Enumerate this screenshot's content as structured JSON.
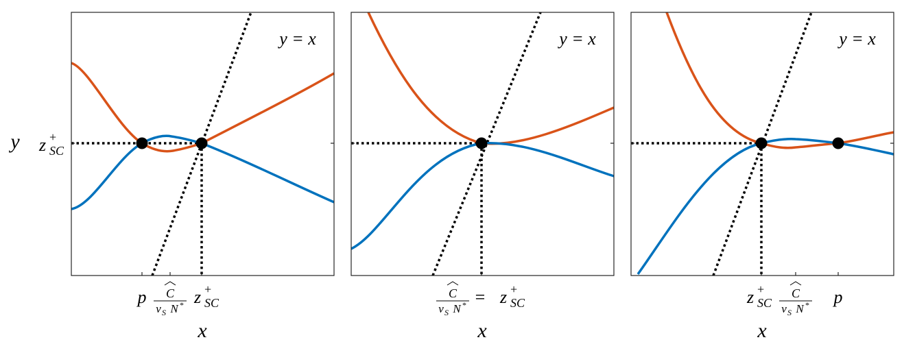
{
  "y_axis_label": "y",
  "y_tick_label": {
    "base": "z",
    "sup": "+",
    "sub": "SC"
  },
  "panels": [
    {
      "annotation": "y = x",
      "x_axis_label": "x",
      "tick_labels": [
        {
          "text": "p"
        },
        {
          "numerator": "C",
          "denominator": [
            "ν",
            "S",
            "N",
            "*"
          ]
        },
        {
          "base": "z",
          "sup": "+",
          "sub": "SC"
        }
      ]
    },
    {
      "annotation": "y = x",
      "x_axis_label": "x",
      "tick_labels": [
        {
          "numerator": "C",
          "denominator": [
            "ν",
            "S",
            "N",
            "*"
          ]
        },
        {
          "text": "="
        },
        {
          "base": "z",
          "sup": "+",
          "sub": "SC"
        }
      ]
    },
    {
      "annotation": "y = x",
      "x_axis_label": "x",
      "tick_labels": [
        {
          "base": "z",
          "sup": "+",
          "sub": "SC"
        },
        {
          "numerator": "C",
          "denominator": [
            "ν",
            "S",
            "N",
            "*"
          ]
        },
        {
          "text": "p"
        }
      ]
    }
  ]
}
